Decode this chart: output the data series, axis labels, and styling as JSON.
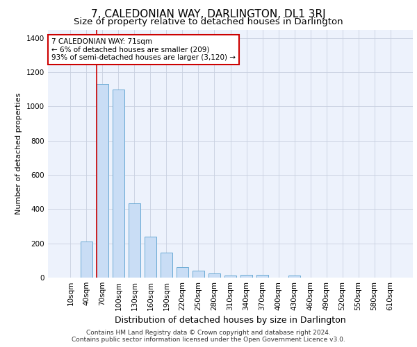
{
  "title": "7, CALEDONIAN WAY, DARLINGTON, DL1 3RJ",
  "subtitle": "Size of property relative to detached houses in Darlington",
  "xlabel": "Distribution of detached houses by size in Darlington",
  "ylabel": "Number of detached properties",
  "footer_line1": "Contains HM Land Registry data © Crown copyright and database right 2024.",
  "footer_line2": "Contains public sector information licensed under the Open Government Licence v3.0.",
  "categories": [
    "10sqm",
    "40sqm",
    "70sqm",
    "100sqm",
    "130sqm",
    "160sqm",
    "190sqm",
    "220sqm",
    "250sqm",
    "280sqm",
    "310sqm",
    "340sqm",
    "370sqm",
    "400sqm",
    "430sqm",
    "460sqm",
    "490sqm",
    "520sqm",
    "550sqm",
    "580sqm",
    "610sqm"
  ],
  "values": [
    0,
    210,
    1130,
    1100,
    435,
    240,
    148,
    62,
    42,
    25,
    12,
    15,
    15,
    0,
    12,
    0,
    0,
    0,
    0,
    0,
    0
  ],
  "bar_color": "#c9ddf5",
  "bar_edge_color": "#6aaad4",
  "annotation_line_color": "#cc0000",
  "annotation_box_text": "7 CALEDONIAN WAY: 71sqm\n← 6% of detached houses are smaller (209)\n93% of semi-detached houses are larger (3,120) →",
  "annotation_box_color": "#cc0000",
  "ylim": [
    0,
    1450
  ],
  "yticks": [
    0,
    200,
    400,
    600,
    800,
    1000,
    1200,
    1400
  ],
  "bg_color": "#edf2fc",
  "grid_color": "#c8d0e0",
  "title_fontsize": 11,
  "subtitle_fontsize": 9.5,
  "xlabel_fontsize": 9,
  "ylabel_fontsize": 8,
  "tick_fontsize": 7.5,
  "annotation_fontsize": 7.5,
  "footer_fontsize": 6.5
}
